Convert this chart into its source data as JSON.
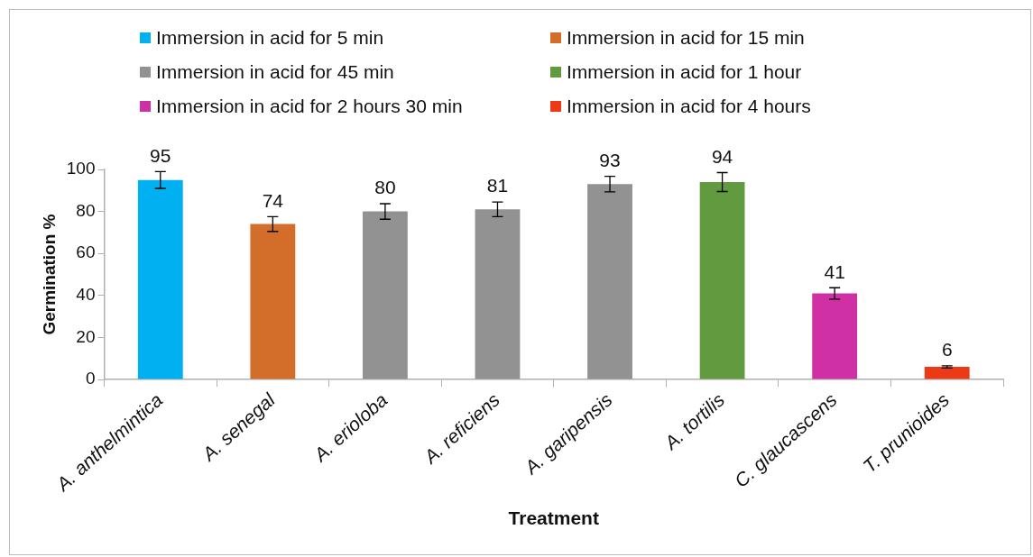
{
  "chart_data": {
    "type": "bar",
    "xlabel": "Treatment",
    "ylabel": "Germination %",
    "categories": [
      "A. anthelmintica",
      "A. senegal",
      "A. erioloba",
      "A. reficiens",
      "A. garipensis",
      "A. tortilis",
      "C. glaucascens",
      "T. prunioides"
    ],
    "series": [
      {
        "name": "Immersion in acid for 5 min",
        "color": "#00b0f0",
        "values": [
          95,
          null,
          null,
          null,
          null,
          null,
          null,
          null
        ],
        "errors": [
          4,
          null,
          null,
          null,
          null,
          null,
          null,
          null
        ]
      },
      {
        "name": "Immersion in acid for 15 min",
        "color": "#d36d2a",
        "values": [
          null,
          74,
          null,
          null,
          null,
          null,
          null,
          null
        ],
        "errors": [
          null,
          3.5,
          null,
          null,
          null,
          null,
          null,
          null
        ]
      },
      {
        "name": "Immersion in acid for 45 min",
        "color": "#929292",
        "values": [
          null,
          null,
          80,
          81,
          93,
          null,
          null,
          null
        ],
        "errors": [
          null,
          null,
          3.7,
          3.5,
          3.7,
          null,
          null,
          null
        ]
      },
      {
        "name": "Immersion in acid for 1 hour",
        "color": "#629b3f",
        "values": [
          null,
          null,
          null,
          null,
          null,
          94,
          null,
          null
        ],
        "errors": [
          null,
          null,
          null,
          null,
          null,
          4.5,
          null,
          null
        ]
      },
      {
        "name": "Immersion in acid for 2 hours 30 min",
        "color": "#cf31a5",
        "values": [
          null,
          null,
          null,
          null,
          null,
          null,
          41,
          null
        ],
        "errors": [
          null,
          null,
          null,
          null,
          null,
          null,
          2.7,
          null
        ]
      },
      {
        "name": "Immersion in acid for 4 hours",
        "color": "#ec3a17",
        "values": [
          null,
          null,
          null,
          null,
          null,
          null,
          null,
          6
        ],
        "errors": [
          null,
          null,
          null,
          null,
          null,
          null,
          null,
          0.5
        ]
      }
    ],
    "ylim": [
      0,
      100
    ],
    "yticks": [
      0,
      20,
      40,
      60,
      80,
      100
    ],
    "grid": false,
    "legend": "top",
    "data_labels": true
  }
}
